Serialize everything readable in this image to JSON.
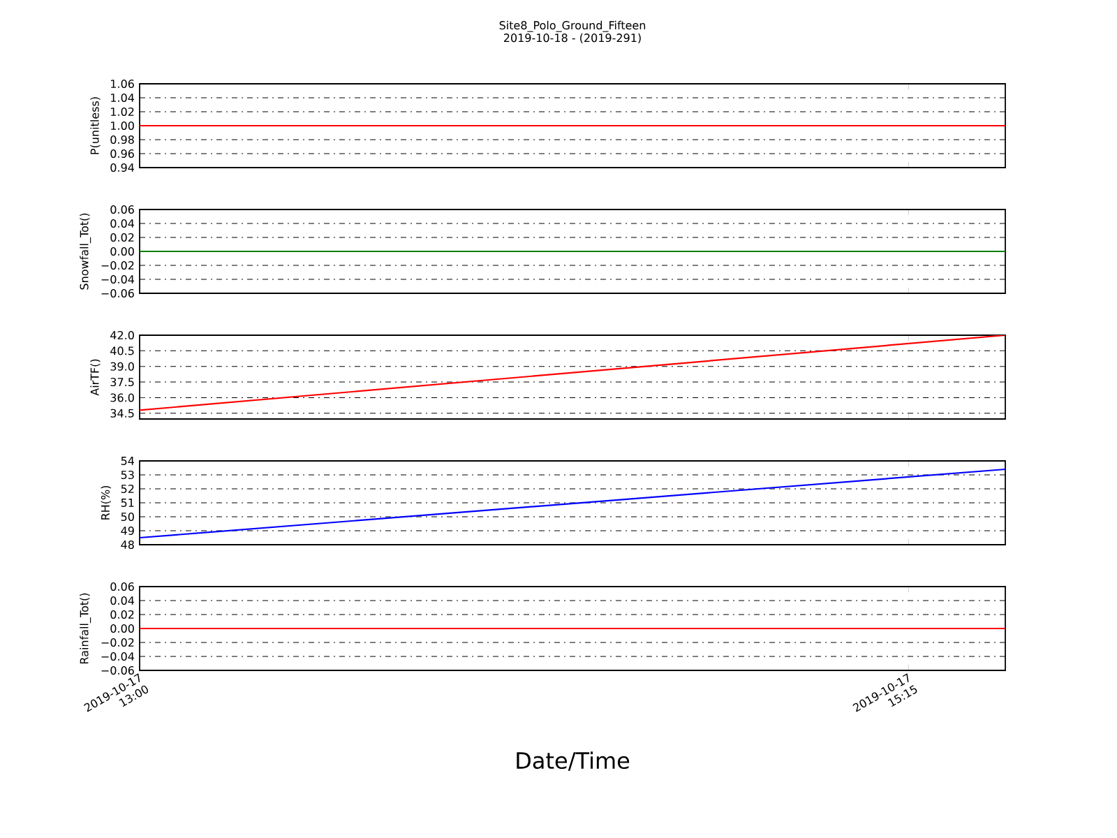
{
  "chart_data": [
    {
      "type": "line",
      "title": "Site8_Polo_Ground_Fifteen",
      "subtitle": "2019-10-18 - (2019-291)",
      "ylabel": "P(unitless)",
      "x": [
        "2019-10-17T13:00",
        "2019-10-17T15:32"
      ],
      "values": [
        1.0,
        1.0
      ],
      "color": "#ff0000",
      "xlim": [
        "2019-10-17T13:00",
        "2019-10-17T15:32"
      ],
      "xticks": [
        "2019-10-17T13:00",
        "2019-10-17T15:15"
      ],
      "ylim": [
        0.94,
        1.06
      ],
      "yticks": [
        0.94,
        0.96,
        0.98,
        {
          "value": 1.0,
          "label": "1.00"
        },
        1.02,
        1.04,
        1.06
      ],
      "grid": "y",
      "tick_labels": "y",
      "line_style": "solid"
    },
    {
      "type": "line",
      "ylabel": "Snowfall_Tot()",
      "x": [
        "2019-10-17T13:00",
        "2019-10-17T15:32"
      ],
      "values": [
        0.0,
        0.0
      ],
      "color": "#008000",
      "xlim": [
        "2019-10-17T13:00",
        "2019-10-17T15:32"
      ],
      "xticks": [
        "2019-10-17T13:00",
        "2019-10-17T15:15"
      ],
      "ylim": [
        -0.06,
        0.06
      ],
      "yticks": [
        {
          "value": -0.06,
          "label": "−0.06"
        },
        {
          "value": -0.04,
          "label": "−0.04"
        },
        {
          "value": -0.02,
          "label": "−0.02"
        },
        {
          "value": 0.0,
          "label": "0.00"
        },
        0.02,
        0.04,
        0.06
      ],
      "grid": "y",
      "tick_labels": "y",
      "line_style": "solid"
    },
    {
      "type": "line",
      "ylabel": "AirTF()",
      "x": [
        "2019-10-17T13:00",
        "2019-10-17T15:32"
      ],
      "values": [
        34.8,
        42.0
      ],
      "color": "#ff0000",
      "xlim": [
        "2019-10-17T13:00",
        "2019-10-17T15:32"
      ],
      "xticks": [
        "2019-10-17T13:00",
        "2019-10-17T15:15"
      ],
      "ylim": [
        33.95,
        42.0
      ],
      "yticks": [
        34.5,
        {
          "value": 36.0,
          "label": "36.0"
        },
        37.5,
        {
          "value": 39.0,
          "label": "39.0"
        },
        40.5,
        {
          "value": 42.0,
          "label": "42.0"
        }
      ],
      "grid": "y",
      "tick_labels": "y",
      "line_style": "solid"
    },
    {
      "type": "line",
      "ylabel": "RH(%)",
      "x": [
        "2019-10-17T13:00",
        "2019-10-17T15:32"
      ],
      "values": [
        48.5,
        53.4
      ],
      "color": "#0000ff",
      "xlim": [
        "2019-10-17T13:00",
        "2019-10-17T15:32"
      ],
      "xticks": [
        "2019-10-17T13:00",
        "2019-10-17T15:15"
      ],
      "ylim": [
        48,
        54
      ],
      "yticks": [
        48,
        49,
        50,
        51,
        52,
        53,
        54
      ],
      "grid": "y",
      "tick_labels": "y",
      "line_style": "solid"
    },
    {
      "type": "line",
      "ylabel": "Rainfall_Tot()",
      "xlabel": "Date/Time",
      "x": [
        "2019-10-17T13:00",
        "2019-10-17T15:32"
      ],
      "values": [
        0.0,
        0.0
      ],
      "color": "#ff0000",
      "xlim": [
        "2019-10-17T13:00",
        "2019-10-17T15:32"
      ],
      "xticks": [
        {
          "value": "2019-10-17T13:00",
          "label": "2019-10-17 13:00"
        },
        {
          "value": "2019-10-17T15:15",
          "label": "2019-10-17 15:15"
        }
      ],
      "ylim": [
        -0.06,
        0.06
      ],
      "yticks": [
        {
          "value": -0.06,
          "label": "−0.06"
        },
        {
          "value": -0.04,
          "label": "−0.04"
        },
        {
          "value": -0.02,
          "label": "−0.02"
        },
        {
          "value": 0.0,
          "label": "0.00"
        },
        0.02,
        0.04,
        0.06
      ],
      "grid": "y",
      "line_style": "solid"
    }
  ]
}
